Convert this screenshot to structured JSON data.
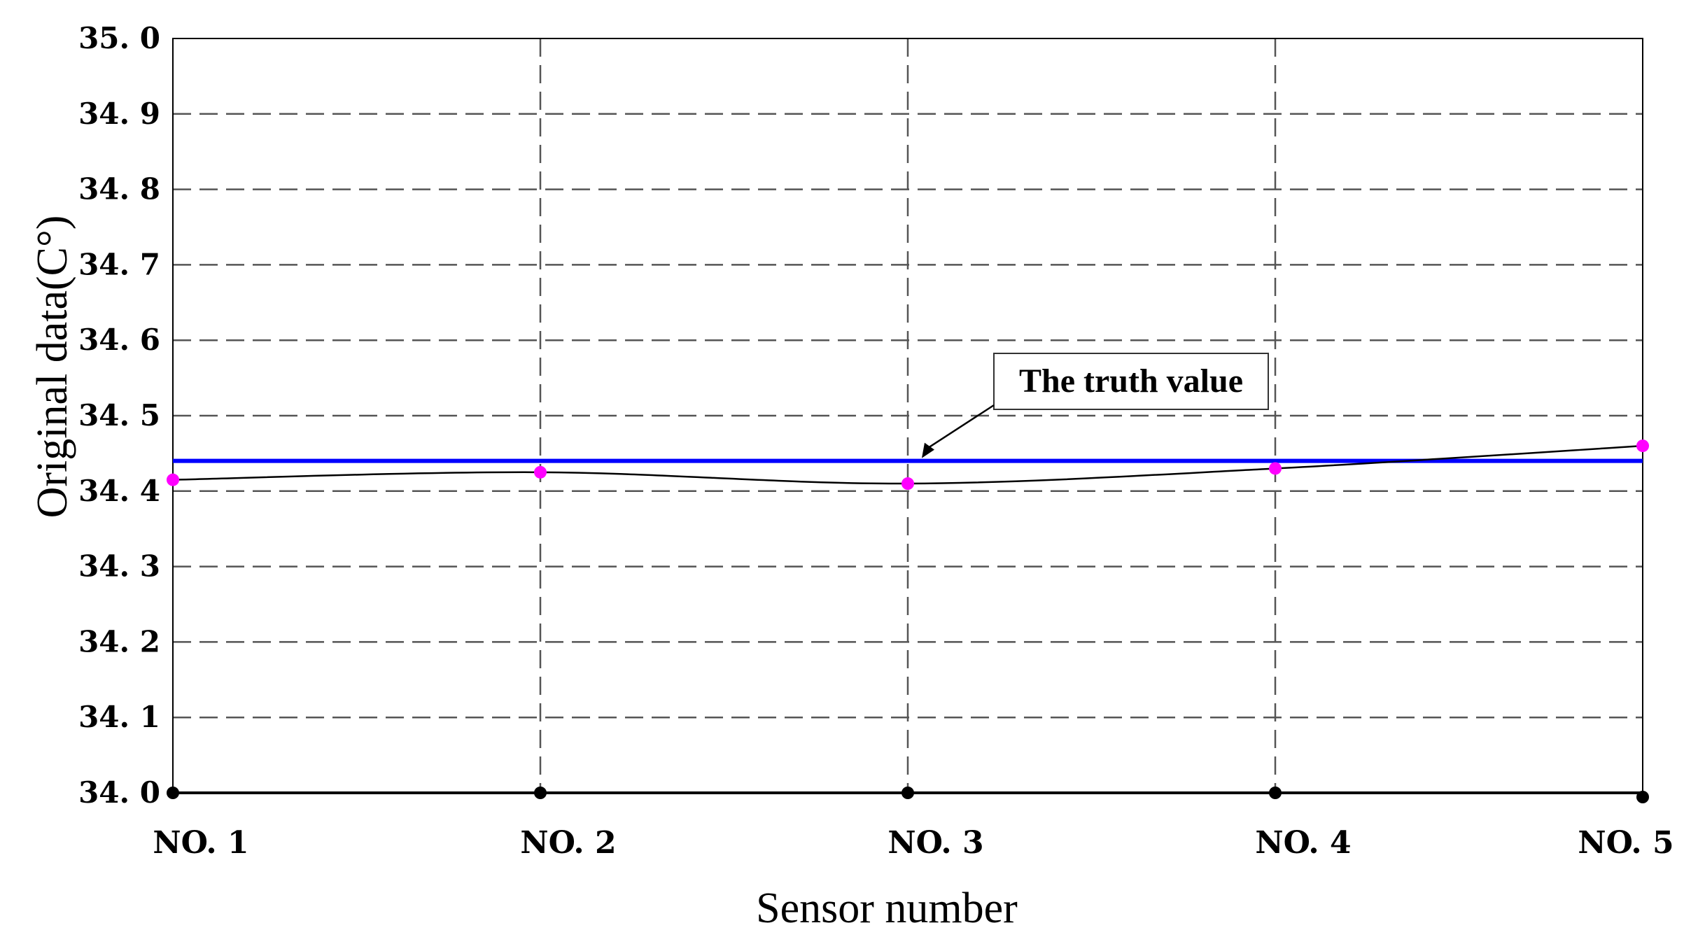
{
  "chart_data": {
    "type": "line",
    "xlabel": "Sensor number",
    "ylabel": "Original data(C°)",
    "categories": [
      "NO. 1",
      "NO. 2",
      "NO. 3",
      "NO. 4",
      "NO. 5"
    ],
    "y_ticks": [
      "34. 0",
      "34. 1",
      "34. 2",
      "34. 3",
      "34. 4",
      "34. 5",
      "34. 6",
      "34. 7",
      "34. 8",
      "34. 9",
      "35. 0"
    ],
    "ylim": [
      34.0,
      35.0
    ],
    "grid": true,
    "series": [
      {
        "values": [
          34.415,
          34.425,
          34.41,
          34.43,
          34.46
        ],
        "color": "#000000",
        "marker_color": "#ff00ff"
      }
    ],
    "reference_lines": [
      {
        "value": 34.44,
        "color": "#0000ff"
      }
    ],
    "annotations": [
      {
        "text": "The truth value",
        "target_category": "NO. 3",
        "target_value": 34.44
      }
    ],
    "baseline_marker_color": "#000000"
  }
}
